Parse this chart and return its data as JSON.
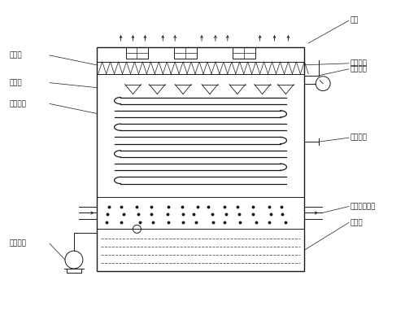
{
  "bg_color": "#ffffff",
  "line_color": "#1a1a1a",
  "fig_width": 4.98,
  "fig_height": 3.82,
  "dpi": 100,
  "labels": {
    "fan": "风机",
    "water_dist": "分水装置",
    "water_coll": "收水器",
    "outer_panel": "外护板",
    "coil": "冷媒盘管",
    "spray_pump": "喷淡水泵",
    "steam_inlet": "蒸汽进口",
    "liquid_outlet": "液体出口",
    "dry_air_inlet": "干冷空气入口",
    "water_tank": "集水筱"
  }
}
